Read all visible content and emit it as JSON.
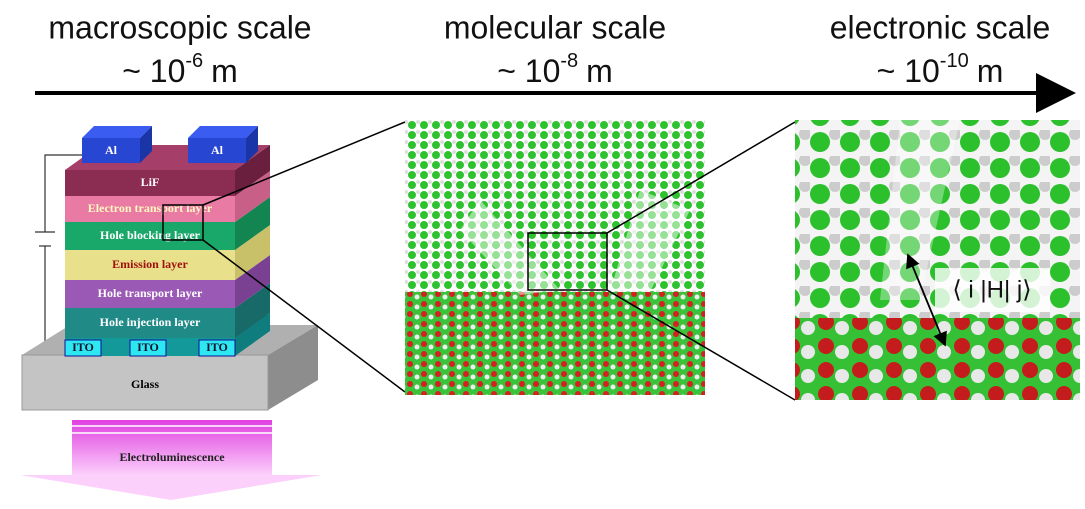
{
  "scales": [
    {
      "title": "macroscopic scale",
      "prefix": "~ 10",
      "exponent": "-6",
      "unit": "m"
    },
    {
      "title": "molecular scale",
      "prefix": "~ 10",
      "exponent": "-8",
      "unit": "m"
    },
    {
      "title": "electronic scale",
      "prefix": "~ 10",
      "exponent": "-10",
      "unit": "m"
    }
  ],
  "device": {
    "electrodes": [
      "Al",
      "Al"
    ],
    "layers": [
      "LiF",
      "Electron transport layer",
      "Hole blocking layer",
      "Emission layer",
      "Hole transport layer",
      "Hole injection layer"
    ],
    "ito": [
      "ITO",
      "ITO",
      "ITO"
    ],
    "substrate": "Glass",
    "emission": "Electroluminescence"
  },
  "annotation": "⟨ i |H| j⟩"
}
